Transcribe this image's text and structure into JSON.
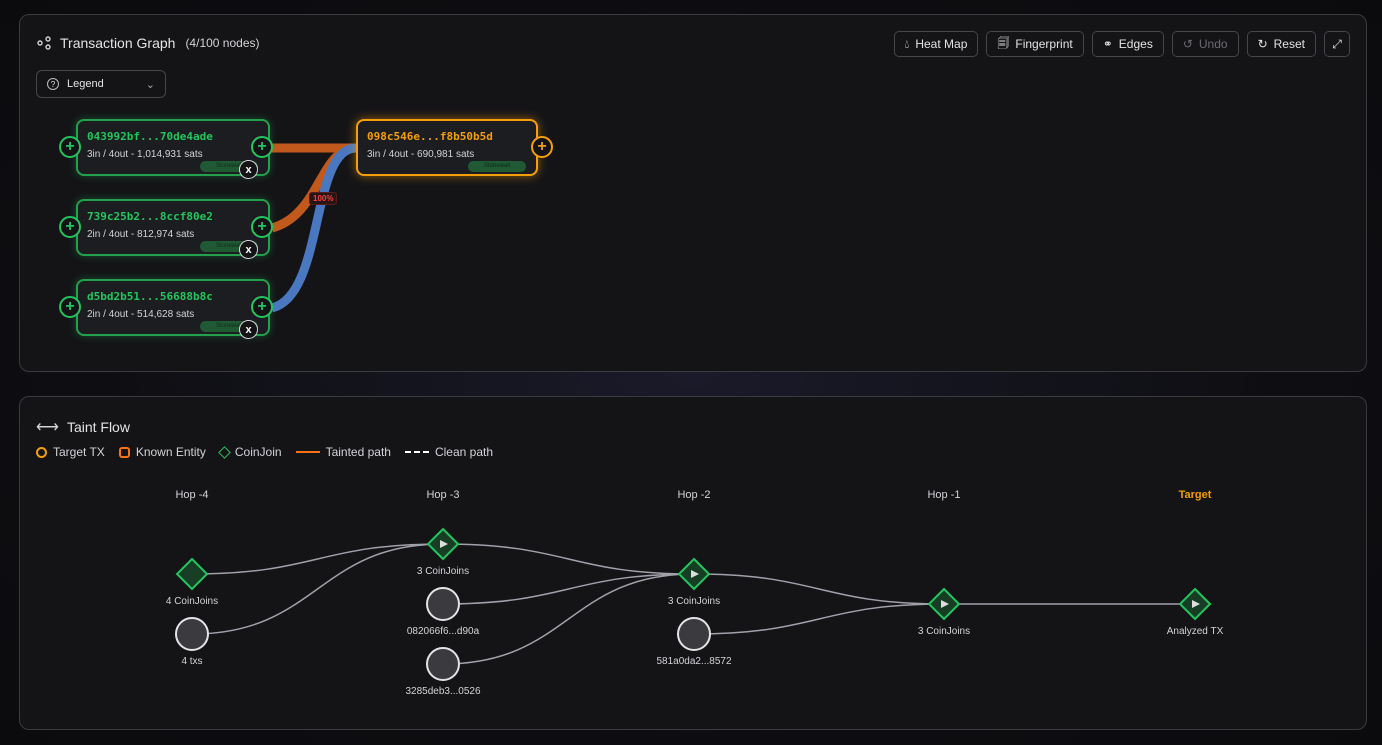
{
  "graph": {
    "title": "Transaction Graph",
    "node_count": "(4/100 nodes)",
    "toolbar": {
      "heatmap": "Heat Map",
      "fingerprint": "Fingerprint",
      "edges": "Edges",
      "undo": "Undo",
      "reset": "Reset"
    },
    "legend_label": "Legend",
    "inputs": [
      {
        "hash": "043992bf...70de4ade",
        "info": "3in / 4out - 1,014,931 sats",
        "tag": "Stonewall",
        "edge_color": "#c2591c"
      },
      {
        "hash": "739c25b2...8ccf80e2",
        "info": "2in / 4out - 812,974 sats",
        "tag": "Stonewall",
        "edge_color": "#c2591c"
      },
      {
        "hash": "d5bd2b51...56688b8c",
        "info": "2in / 4out - 514,628 sats",
        "tag": "Stonewall",
        "edge_color": "#4a78c0"
      }
    ],
    "target": {
      "hash": "098c546e...f8b50b5d",
      "info": "3in / 4out - 690,981 sats",
      "tag": "Stonewall"
    },
    "edge_label": "100%",
    "remove_label": "x",
    "add_label": "+"
  },
  "taint": {
    "title": "Taint Flow",
    "legend": {
      "target": "Target TX",
      "entity": "Known Entity",
      "coinjoin": "CoinJoin",
      "tainted": "Tainted path",
      "clean": "Clean path"
    },
    "colors": {
      "target": "#f59e0b",
      "entity": "#f97316",
      "coinjoin": "#22c55e",
      "tainted": "#f97316",
      "edge": "#a1a1aa"
    },
    "columns": [
      {
        "label": "Hop -4",
        "nodes": [
          {
            "type": "coinjoin",
            "label": "4 CoinJoins"
          },
          {
            "type": "tx",
            "label": "4 txs"
          }
        ]
      },
      {
        "label": "Hop -3",
        "nodes": [
          {
            "type": "coinjoin",
            "label": "3 CoinJoins"
          },
          {
            "type": "tx",
            "label": "082066f6...d90a"
          },
          {
            "type": "tx",
            "label": "3285deb3...0526"
          }
        ]
      },
      {
        "label": "Hop -2",
        "nodes": [
          {
            "type": "coinjoin",
            "label": "3 CoinJoins"
          },
          {
            "type": "tx",
            "label": "581a0da2...8572"
          }
        ]
      },
      {
        "label": "Hop -1",
        "nodes": [
          {
            "type": "coinjoin",
            "label": "3 CoinJoins"
          }
        ]
      },
      {
        "label": "Target",
        "nodes": [
          {
            "type": "coinjoin",
            "label": "Analyzed TX"
          }
        ]
      }
    ],
    "edges": [
      [
        [
          0,
          0
        ],
        [
          1,
          0
        ]
      ],
      [
        [
          0,
          1
        ],
        [
          1,
          0
        ]
      ],
      [
        [
          1,
          0
        ],
        [
          2,
          0
        ]
      ],
      [
        [
          1,
          1
        ],
        [
          2,
          0
        ]
      ],
      [
        [
          1,
          2
        ],
        [
          2,
          0
        ]
      ],
      [
        [
          2,
          0
        ],
        [
          3,
          0
        ]
      ],
      [
        [
          2,
          1
        ],
        [
          3,
          0
        ]
      ],
      [
        [
          3,
          0
        ],
        [
          4,
          0
        ]
      ]
    ]
  }
}
